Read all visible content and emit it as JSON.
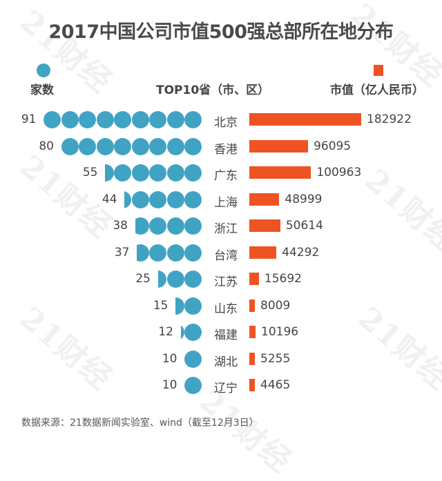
{
  "title": "2017中国公司市值500强总部所在地分布",
  "legend": {
    "count_label": "家数",
    "count_color": "#41a3c4",
    "category_label": "TOP10省（市、区）",
    "value_label": "市值（亿人民币）",
    "value_color": "#ee5324"
  },
  "footer": "数据来源：21数据新闻实验室、wind（截至12月3日）",
  "watermark": "21财经",
  "rows": [
    {
      "region": "北京",
      "count": "91",
      "value": "182922"
    },
    {
      "region": "香港",
      "count": "80",
      "value": "96095"
    },
    {
      "region": "广东",
      "count": "55",
      "value": "100963"
    },
    {
      "region": "上海",
      "count": "44",
      "value": "48999"
    },
    {
      "region": "浙江",
      "count": "38",
      "value": "50614"
    },
    {
      "region": "台湾",
      "count": "37",
      "value": "44292"
    },
    {
      "region": "江苏",
      "count": "25",
      "value": "15692"
    },
    {
      "region": "山东",
      "count": "15",
      "value": "8009"
    },
    {
      "region": "福建",
      "count": "12",
      "value": "10196"
    },
    {
      "region": "湖北",
      "count": "10",
      "value": "5255"
    },
    {
      "region": "辽宁",
      "count": "10",
      "value": "4465"
    }
  ],
  "chart_data": {
    "type": "bar",
    "title": "2017中国公司市值500强总部所在地分布",
    "categories": [
      "北京",
      "香港",
      "广东",
      "上海",
      "浙江",
      "台湾",
      "江苏",
      "山东",
      "福建",
      "湖北",
      "辽宁"
    ],
    "series": [
      {
        "name": "家数",
        "type": "pictogram",
        "unit_per_icon": 10,
        "color": "#41a3c4",
        "values": [
          91,
          80,
          55,
          44,
          38,
          37,
          25,
          15,
          12,
          10,
          10
        ]
      },
      {
        "name": "市值（亿人民币）",
        "type": "bar",
        "color": "#ee5324",
        "values": [
          182922,
          96095,
          100963,
          48999,
          50614,
          44292,
          15692,
          8009,
          10196,
          5255,
          4465
        ]
      }
    ],
    "xlabel": "TOP10省（市、区）",
    "ylabel": "",
    "orientation": "horizontal",
    "grid": false,
    "legend_position": "top",
    "source": "数据来源：21数据新闻实验室、wind（截至12月3日）"
  }
}
